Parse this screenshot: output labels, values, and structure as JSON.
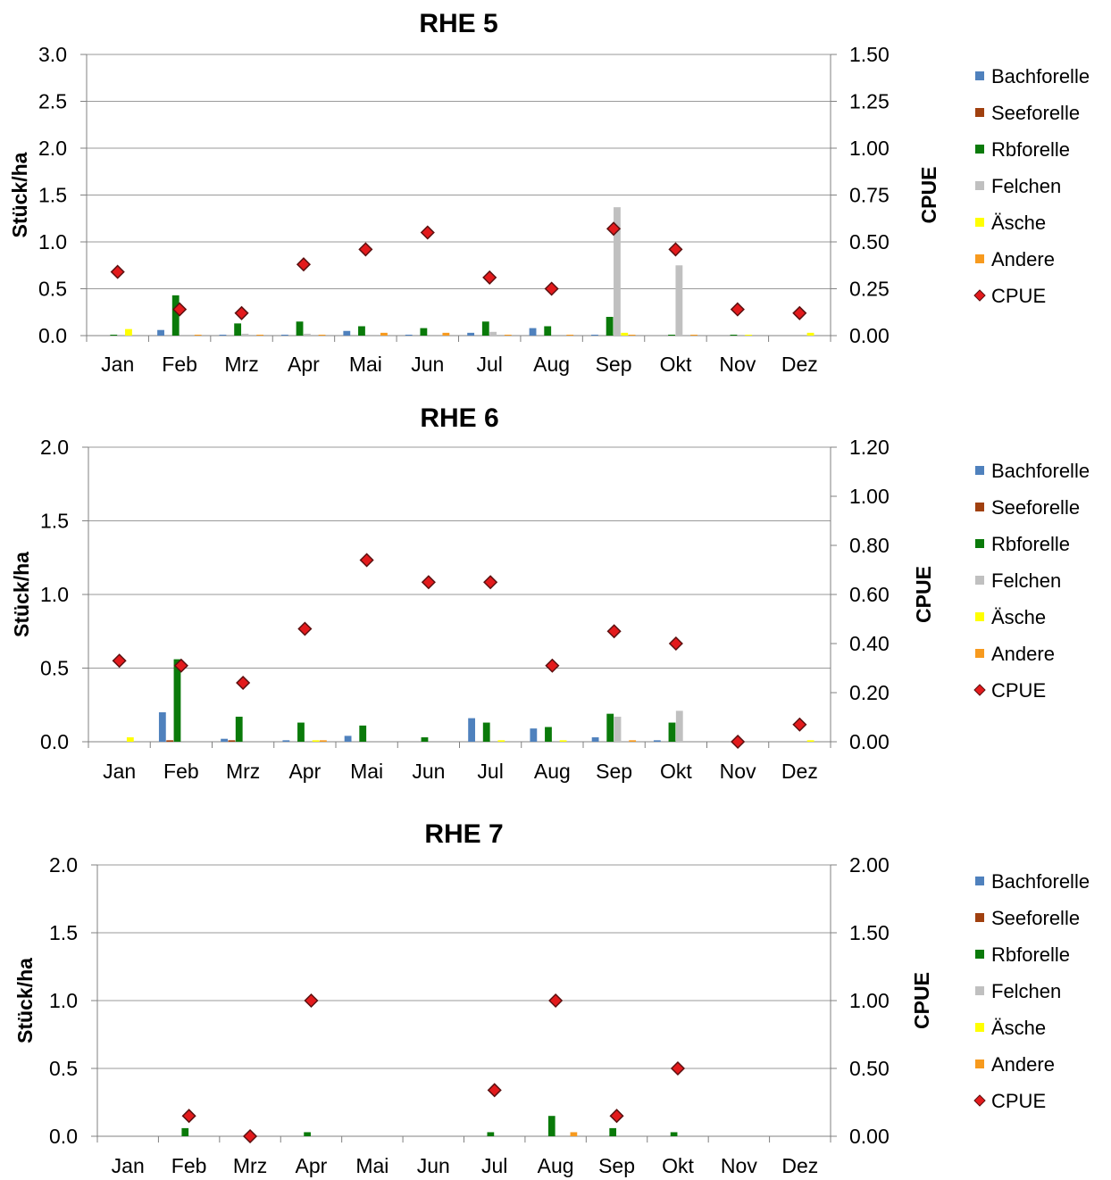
{
  "categories": [
    "Jan",
    "Feb",
    "Mrz",
    "Apr",
    "Mai",
    "Jun",
    "Jul",
    "Aug",
    "Sep",
    "Okt",
    "Nov",
    "Dez"
  ],
  "legend": [
    {
      "name": "Bachforelle",
      "color": "#4F81BD",
      "marker": "square"
    },
    {
      "name": "Seeforelle",
      "color": "#A0400F",
      "marker": "square"
    },
    {
      "name": "Rbforelle",
      "color": "#0A7A0A",
      "marker": "square"
    },
    {
      "name": "Felchen",
      "color": "#C0C0C0",
      "marker": "square"
    },
    {
      "name": "Äsche",
      "color": "#FFFF00",
      "marker": "square"
    },
    {
      "name": "Andere",
      "color": "#F79A1E",
      "marker": "square"
    },
    {
      "name": "CPUE",
      "color": "#E31A1C",
      "marker": "diamond"
    }
  ],
  "chart_data": [
    {
      "type": "bar",
      "title": "RHE 5",
      "ylabel": "Stück/ha",
      "y2label": "CPUE",
      "ylim": [
        0,
        3.0
      ],
      "y2lim": [
        0,
        1.5
      ],
      "yticks": [
        "0.0",
        "0.5",
        "1.0",
        "1.5",
        "2.0",
        "2.5",
        "3.0"
      ],
      "y2ticks": [
        "0.00",
        "0.25",
        "0.50",
        "0.75",
        "1.00",
        "1.25",
        "1.50"
      ],
      "categories": [
        "Jan",
        "Feb",
        "Mrz",
        "Apr",
        "Mai",
        "Jun",
        "Jul",
        "Aug",
        "Sep",
        "Okt",
        "Nov",
        "Dez"
      ],
      "series": [
        {
          "name": "Bachforelle",
          "values": [
            0,
            0.06,
            0.01,
            0.01,
            0.05,
            0.01,
            0.03,
            0.08,
            0.01,
            0,
            0,
            0
          ]
        },
        {
          "name": "Seeforelle",
          "values": [
            0,
            0,
            0,
            0,
            0,
            0,
            0,
            0,
            0,
            0,
            0,
            0
          ]
        },
        {
          "name": "Rbforelle",
          "values": [
            0.01,
            0.43,
            0.13,
            0.15,
            0.1,
            0.08,
            0.15,
            0.1,
            0.2,
            0.01,
            0.01,
            0
          ]
        },
        {
          "name": "Felchen",
          "values": [
            0,
            0,
            0.02,
            0.02,
            0,
            0,
            0.04,
            0,
            1.37,
            0.75,
            0,
            0
          ]
        },
        {
          "name": "Äsche",
          "values": [
            0.07,
            0,
            0,
            0,
            0,
            0,
            0,
            0,
            0.03,
            0,
            0.01,
            0.03
          ]
        },
        {
          "name": "Andere",
          "values": [
            0,
            0.01,
            0.01,
            0.01,
            0.03,
            0.03,
            0.01,
            0.01,
            0.01,
            0.01,
            0,
            0
          ]
        }
      ],
      "cpue": [
        0.34,
        0.14,
        0.12,
        0.38,
        0.46,
        0.55,
        0.31,
        0.25,
        0.57,
        0.46,
        0.14,
        0.12
      ]
    },
    {
      "type": "bar",
      "title": "RHE 6",
      "ylabel": "Stück/ha",
      "y2label": "CPUE",
      "ylim": [
        0,
        2.0
      ],
      "y2lim": [
        0,
        1.2
      ],
      "yticks": [
        "0.0",
        "0.5",
        "1.0",
        "1.5",
        "2.0"
      ],
      "y2ticks": [
        "0.00",
        "0.20",
        "0.40",
        "0.60",
        "0.80",
        "1.00",
        "1.20"
      ],
      "categories": [
        "Jan",
        "Feb",
        "Mrz",
        "Apr",
        "Mai",
        "Jun",
        "Jul",
        "Aug",
        "Sep",
        "Okt",
        "Nov",
        "Dez"
      ],
      "series": [
        {
          "name": "Bachforelle",
          "values": [
            0,
            0.2,
            0.02,
            0.01,
            0.04,
            0,
            0.16,
            0.09,
            0.03,
            0.01,
            0,
            0
          ]
        },
        {
          "name": "Seeforelle",
          "values": [
            0,
            0.01,
            0.01,
            0,
            0,
            0,
            0,
            0,
            0,
            0,
            0,
            0
          ]
        },
        {
          "name": "Rbforelle",
          "values": [
            0,
            0.56,
            0.17,
            0.13,
            0.11,
            0.03,
            0.13,
            0.1,
            0.19,
            0.13,
            0,
            0
          ]
        },
        {
          "name": "Felchen",
          "values": [
            0,
            0,
            0,
            0,
            0,
            0,
            0,
            0,
            0.17,
            0.21,
            0,
            0
          ]
        },
        {
          "name": "Äsche",
          "values": [
            0.03,
            0,
            0,
            0.01,
            0,
            0,
            0.01,
            0.01,
            0,
            0,
            0,
            0.01
          ]
        },
        {
          "name": "Andere",
          "values": [
            0,
            0,
            0,
            0.01,
            0,
            0,
            0,
            0,
            0.01,
            0,
            0,
            0
          ]
        }
      ],
      "cpue": [
        0.33,
        0.31,
        0.24,
        0.46,
        0.74,
        0.65,
        0.65,
        0.31,
        0.45,
        0.4,
        0.0,
        0.07
      ]
    },
    {
      "type": "bar",
      "title": "RHE 7",
      "ylabel": "Stück/ha",
      "y2label": "CPUE",
      "ylim": [
        0,
        2.0
      ],
      "y2lim": [
        0,
        2.0
      ],
      "yticks": [
        "0.0",
        "0.5",
        "1.0",
        "1.5",
        "2.0"
      ],
      "y2ticks": [
        "0.00",
        "0.50",
        "1.00",
        "1.50",
        "2.00"
      ],
      "categories": [
        "Jan",
        "Feb",
        "Mrz",
        "Apr",
        "Mai",
        "Jun",
        "Jul",
        "Aug",
        "Sep",
        "Okt",
        "Nov",
        "Dez"
      ],
      "series": [
        {
          "name": "Bachforelle",
          "values": [
            0,
            0,
            0,
            0,
            0,
            0,
            0,
            0,
            0,
            0,
            0,
            0
          ]
        },
        {
          "name": "Seeforelle",
          "values": [
            0,
            0,
            0,
            0,
            0,
            0,
            0,
            0,
            0,
            0,
            0,
            0
          ]
        },
        {
          "name": "Rbforelle",
          "values": [
            0,
            0.06,
            0,
            0.03,
            0,
            0,
            0.03,
            0.15,
            0.06,
            0.03,
            0,
            0
          ]
        },
        {
          "name": "Felchen",
          "values": [
            0,
            0,
            0,
            0,
            0,
            0,
            0,
            0,
            0,
            0,
            0,
            0
          ]
        },
        {
          "name": "Äsche",
          "values": [
            0,
            0,
            0,
            0,
            0,
            0,
            0,
            0,
            0,
            0,
            0,
            0
          ]
        },
        {
          "name": "Andere",
          "values": [
            0,
            0,
            0,
            0,
            0,
            0,
            0,
            0.03,
            0,
            0,
            0,
            0
          ]
        }
      ],
      "cpue": [
        null,
        0.15,
        0.0,
        1.0,
        null,
        null,
        0.34,
        1.0,
        0.15,
        0.5,
        null,
        null
      ]
    }
  ]
}
